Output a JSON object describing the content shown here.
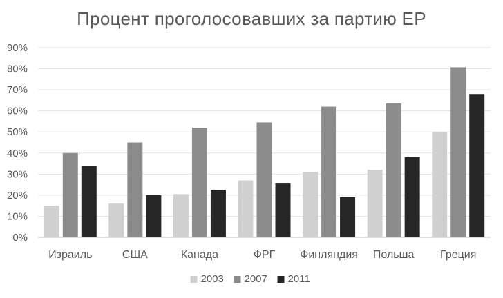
{
  "chart_data": {
    "type": "bar",
    "title": "Процент проголосовавших за партию ЕР",
    "xlabel": "",
    "ylabel": "",
    "categories": [
      "Израиль",
      "США",
      "Канада",
      "ФРГ",
      "Финляндия",
      "Польша",
      "Греция"
    ],
    "series": [
      {
        "name": "2003",
        "color": "#d0d0d0",
        "values": [
          15,
          16,
          20.5,
          27,
          31,
          32,
          50
        ]
      },
      {
        "name": "2007",
        "color": "#8c8c8c",
        "values": [
          40,
          45,
          52,
          54.5,
          62,
          63.5,
          80.7
        ]
      },
      {
        "name": "2011",
        "color": "#262626",
        "values": [
          34,
          20,
          22.5,
          25.5,
          19,
          38,
          68
        ]
      }
    ],
    "y_ticks": [
      "0%",
      "10%",
      "20%",
      "30%",
      "40%",
      "50%",
      "60%",
      "70%",
      "80%",
      "90%"
    ],
    "ylim": [
      0,
      90
    ],
    "grid": true,
    "legend_position": "bottom"
  }
}
